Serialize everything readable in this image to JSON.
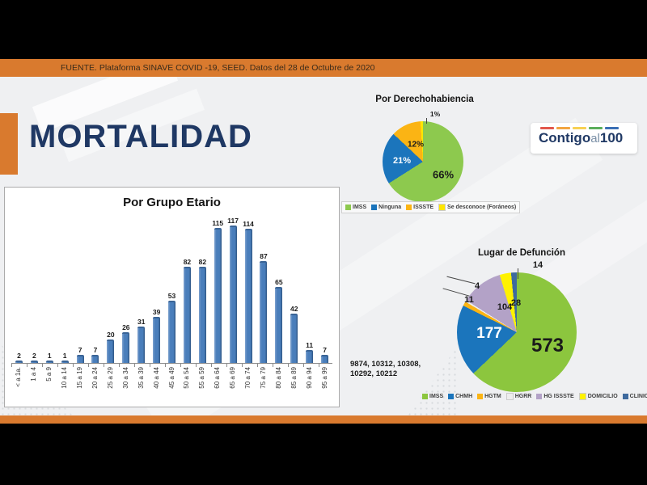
{
  "header": {
    "source_text": "FUENTE. Plataforma SINAVE COVID -19, SEED. Datos del 28 de Octubre de 2020"
  },
  "slide": {
    "title": "MORTALIDAD",
    "accent_color": "#D97A2E",
    "title_color": "#1F3864",
    "background_color": "#EFF0F2"
  },
  "logo": {
    "part1": "Contigo",
    "part2": "al",
    "part3": "100",
    "dash_colors": [
      "#E2574C",
      "#F2A541",
      "#F7D154",
      "#5BAE5B",
      "#3A6FB5"
    ]
  },
  "annotations": {
    "counts_line1": "9874, 10312, 10308,",
    "counts_line2": "10292, 10212"
  },
  "chart_data": [
    {
      "type": "bar",
      "title": "Por Grupo Etario",
      "categories": [
        "< a 1a.",
        "1 a 4",
        "5 a 9",
        "10 a 14",
        "15 a 19",
        "20 a 24",
        "25 a 29",
        "30 a 34",
        "35 a 39",
        "40 a 44",
        "45 a 49",
        "50 a 54",
        "55 a 59",
        "60 a 64",
        "65 a 69",
        "70 a 74",
        "75 a 79",
        "80 a 84",
        "85 a 89",
        "90 a 94",
        "95 a 99"
      ],
      "values": [
        2,
        2,
        1,
        1,
        7,
        7,
        20,
        26,
        31,
        39,
        53,
        82,
        82,
        115,
        117,
        114,
        87,
        65,
        42,
        11,
        7
      ],
      "xlabel": "",
      "ylabel": "",
      "ylim": [
        0,
        130
      ],
      "bar_color": "#4A7EBB",
      "grid": false,
      "legend_position": "none"
    },
    {
      "type": "pie",
      "title": "Por Derechohabiencia",
      "slices": [
        {
          "label": "IMSS",
          "value": 66,
          "display": "66%",
          "color": "#8DC94E"
        },
        {
          "label": "Ninguna",
          "value": 21,
          "display": "21%",
          "color": "#1B75BC"
        },
        {
          "label": "ISSSTE",
          "value": 12,
          "display": "12%",
          "color": "#FBB414"
        },
        {
          "label": "Se desconoce (Foráneos)",
          "value": 1,
          "display": "1%",
          "color": "#FFE600"
        }
      ],
      "legend_position": "bottom"
    },
    {
      "type": "pie",
      "title": "Lugar de Defunción",
      "slices": [
        {
          "label": "IMSS",
          "value": 573,
          "display": "573",
          "color": "#8CC63E"
        },
        {
          "label": "CHMH",
          "value": 177,
          "display": "177",
          "color": "#1B75BC"
        },
        {
          "label": "HGTM",
          "value": 11,
          "display": "11",
          "color": "#FBB414"
        },
        {
          "label": "HGRR",
          "value": 4,
          "display": "4",
          "color": "#EDEDED"
        },
        {
          "label": "HG ISSSTE",
          "value": 104,
          "display": "104",
          "color": "#B3A2C7"
        },
        {
          "label": "DOMICILIO",
          "value": 28,
          "display": "28",
          "color": "#FFF200"
        },
        {
          "label": "CLINICA PRIVADA",
          "value": 14,
          "display": "14",
          "color": "#3E6A9E"
        }
      ],
      "legend_position": "bottom"
    }
  ]
}
